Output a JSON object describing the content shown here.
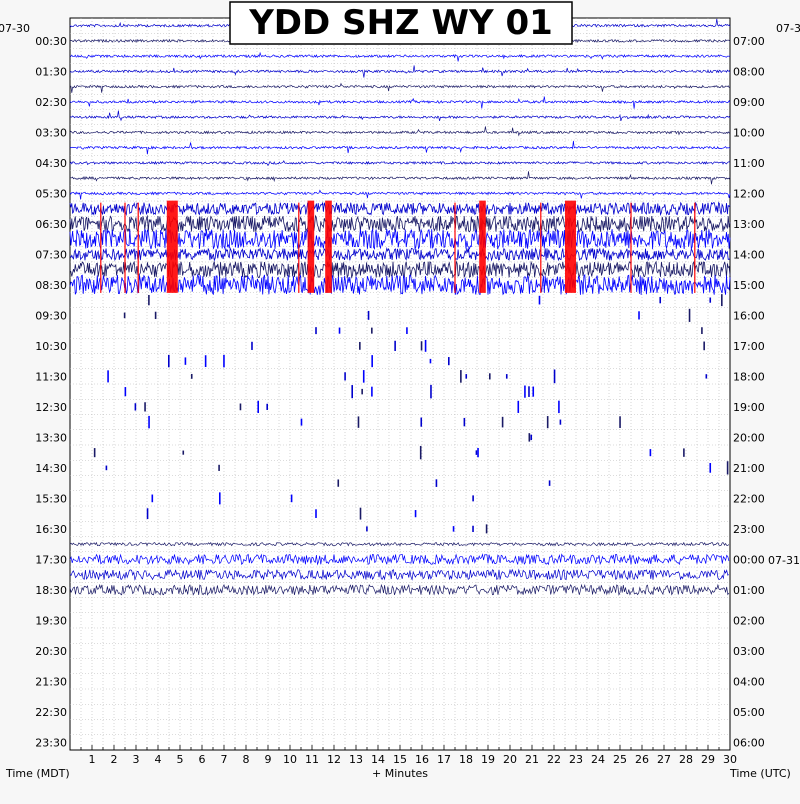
{
  "chart_data": {
    "type": "line",
    "title": "YDD SHZ WY 01",
    "left_date": "07-30",
    "right_date_top": "07-30",
    "right_date_next": "07-31",
    "xlabel": "+ Minutes",
    "xlabel_left": "Time (MDT)",
    "xlabel_right": "Time (UTC)",
    "xlim": [
      0,
      30
    ],
    "x_ticks": [
      1,
      2,
      3,
      4,
      5,
      6,
      7,
      8,
      9,
      10,
      11,
      12,
      13,
      14,
      15,
      16,
      17,
      18,
      19,
      20,
      21,
      22,
      23,
      24,
      25,
      26,
      27,
      28,
      29,
      30
    ],
    "left_hour_labels": [
      "00:30",
      "01:30",
      "02:30",
      "03:30",
      "04:30",
      "05:30",
      "06:30",
      "07:30",
      "08:30",
      "09:30",
      "10:30",
      "11:30",
      "12:30",
      "13:30",
      "14:30",
      "15:30",
      "16:30",
      "17:30",
      "18:30",
      "19:30",
      "20:30",
      "21:30",
      "22:30",
      "23:30"
    ],
    "right_hour_labels": [
      "07:00",
      "08:00",
      "09:00",
      "10:00",
      "11:00",
      "12:00",
      "13:00",
      "14:00",
      "15:00",
      "16:00",
      "17:00",
      "18:00",
      "19:00",
      "20:00",
      "21:00",
      "22:00",
      "23:00",
      "00:00",
      "01:00",
      "02:00",
      "03:00",
      "04:00",
      "05:00",
      "06:00"
    ],
    "grid": true,
    "trace_colors": [
      "#0000cc",
      "#1a1a66",
      "#0000ff"
    ],
    "clip_color": "#ff0000",
    "rows_per_hour": 2,
    "recorded_rows": 18,
    "noisy_rows": [
      12,
      13,
      14,
      15,
      16,
      17
    ],
    "clip_bursts_minutes": [
      [
        4.4,
        4.9
      ],
      [
        10.8,
        11.1
      ],
      [
        11.6,
        11.9
      ],
      [
        18.6,
        18.9
      ],
      [
        22.5,
        23.0
      ]
    ],
    "spikes_minutes": [
      1.4,
      2.5,
      3.1,
      10.4,
      17.5,
      21.4,
      25.5,
      28.4
    ]
  }
}
